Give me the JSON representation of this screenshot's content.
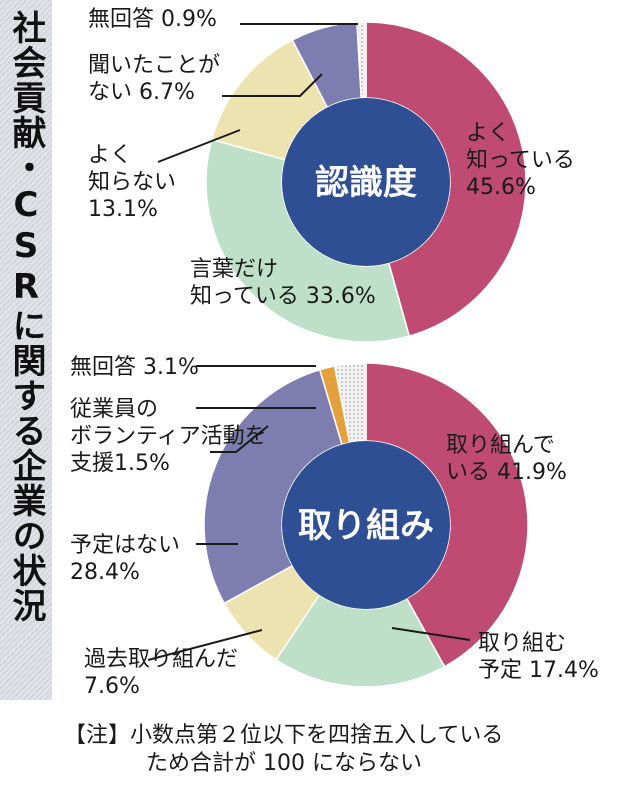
{
  "side_title": "社会貢献・CSRに関する企業の状況",
  "footnote": {
    "line1": "【注】小数点第２位以下を四捨五入している",
    "line2": "ため合計が 100 にならない"
  },
  "chart_data": [
    {
      "type": "pie",
      "title": "認識度",
      "slices": [
        {
          "label": "よく知っている",
          "value": 45.6,
          "color": "#bf4a72"
        },
        {
          "label": "言葉だけ知っている",
          "value": 33.6,
          "color": "#bfe0c8"
        },
        {
          "label": "よく知らない",
          "value": 13.1,
          "color": "#ede3b0"
        },
        {
          "label": "聞いたことがない",
          "value": 6.7,
          "color": "#7e7db0"
        },
        {
          "label": "無回答",
          "value": 0.9,
          "color": "#eeeeee"
        }
      ],
      "labels_text": {
        "a": {
          "l1": "よく",
          "l2": "知っている",
          "l3": "45.6%"
        },
        "b": {
          "l1": "言葉だけ",
          "l2": "知っている 33.6%"
        },
        "c": {
          "l1": "よく",
          "l2": "知らない",
          "l3": "13.1%"
        },
        "d": {
          "l1": "聞いたことが",
          "l2": "ない 6.7%"
        },
        "e": {
          "l1": "無回答 0.9%"
        }
      }
    },
    {
      "type": "pie",
      "title": "取り組み",
      "slices": [
        {
          "label": "取り組んでいる",
          "value": 41.9,
          "color": "#bf4a72"
        },
        {
          "label": "取り組む予定",
          "value": 17.4,
          "color": "#bfe0c8"
        },
        {
          "label": "過去取り組んだ",
          "value": 7.6,
          "color": "#ede3b0"
        },
        {
          "label": "予定はない",
          "value": 28.4,
          "color": "#7e7db0"
        },
        {
          "label": "従業員のボランティア活動を支援",
          "value": 1.5,
          "color": "#e3a03c"
        },
        {
          "label": "無回答",
          "value": 3.1,
          "color": "#eeeeee"
        }
      ],
      "labels_text": {
        "a": {
          "l1": "取り組んで",
          "l2": "いる 41.9%"
        },
        "b": {
          "l1": "取り組む",
          "l2": "予定 17.4%"
        },
        "c": {
          "l1": "過去取り組んだ",
          "l2": "7.6%"
        },
        "d": {
          "l1": "予定はない",
          "l2": "28.4%"
        },
        "e": {
          "l1": "従業員の",
          "l2": "ボランティア活動を",
          "l3": "支援1.5%"
        },
        "f": {
          "l1": "無回答 3.1%"
        }
      }
    }
  ]
}
